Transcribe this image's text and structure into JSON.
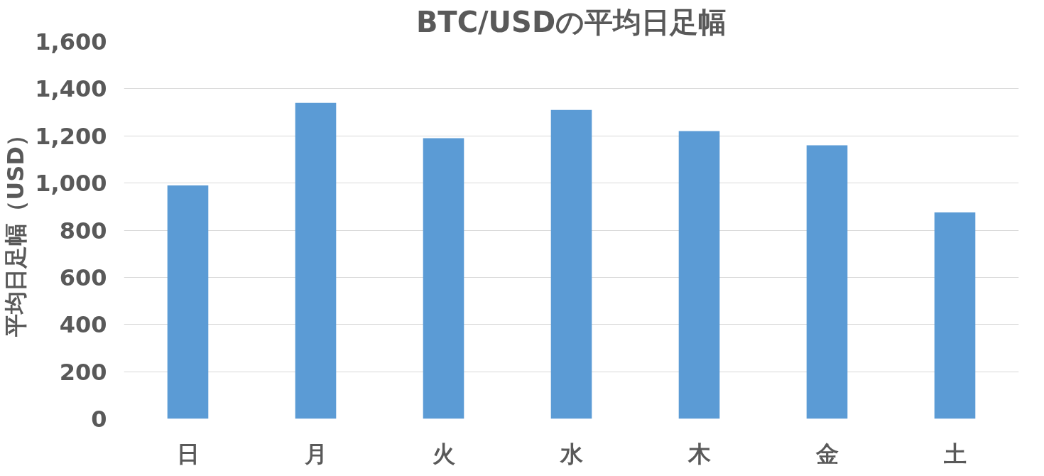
{
  "chart_data": {
    "type": "bar",
    "title": "BTC/USDの平均日足幅",
    "ylabel": "平均日足幅（USD）",
    "categories": [
      "日",
      "月",
      "火",
      "水",
      "木",
      "金",
      "土"
    ],
    "series": [
      {
        "color": "#5b9bd5",
        "values": [
          990,
          1340,
          1190,
          1310,
          1220,
          1160,
          875
        ]
      }
    ],
    "ylim": [
      0,
      1600
    ],
    "yticks": [
      {
        "value": 0,
        "label": "0"
      },
      {
        "value": 200,
        "label": "200"
      },
      {
        "value": 400,
        "label": "400"
      },
      {
        "value": 600,
        "label": "600"
      },
      {
        "value": 800,
        "label": "800"
      },
      {
        "value": 1000,
        "label": "1,000"
      },
      {
        "value": 1200,
        "label": "1,200"
      },
      {
        "value": 1400,
        "label": "1,400"
      },
      {
        "value": 1600,
        "label": "1,600"
      }
    ],
    "grid": "y"
  }
}
